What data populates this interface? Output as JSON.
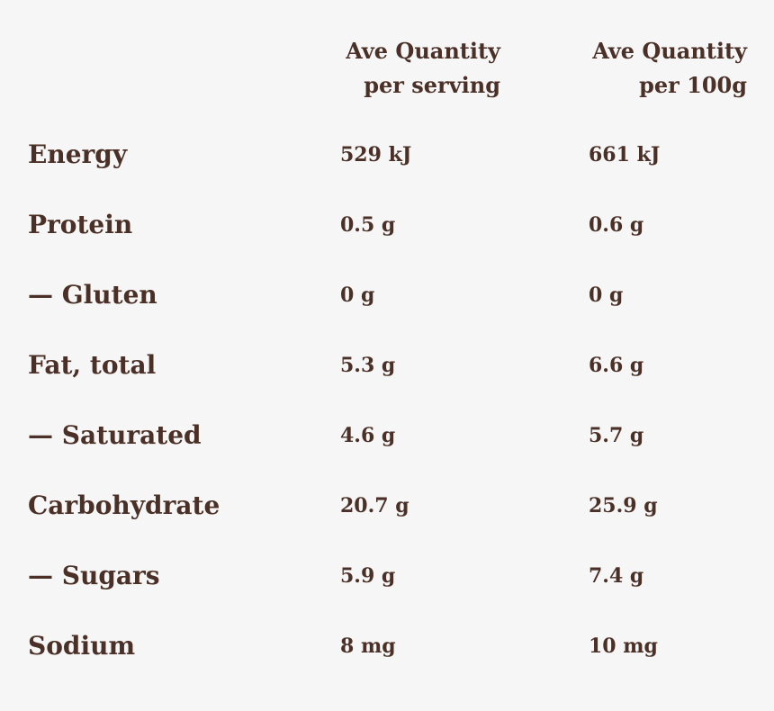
{
  "headers": {
    "serving": {
      "line1": "Ave Quantity",
      "line2": "per serving"
    },
    "per100g": {
      "line1": "Ave Quantity",
      "line2": "per 100g"
    }
  },
  "rows": [
    {
      "label": "Energy",
      "serving": "529 kJ",
      "per100g": "661 kJ"
    },
    {
      "label": "Protein",
      "serving": "0.5 g",
      "per100g": "0.6 g"
    },
    {
      "label": "— Gluten",
      "serving": "0 g",
      "per100g": "0 g"
    },
    {
      "label": "Fat, total",
      "serving": "5.3 g",
      "per100g": "6.6 g"
    },
    {
      "label": "— Saturated",
      "serving": "4.6 g",
      "per100g": "5.7 g"
    },
    {
      "label": "Carbohydrate",
      "serving": "20.7 g",
      "per100g": "25.9 g"
    },
    {
      "label": "— Sugars",
      "serving": "5.9 g",
      "per100g": "7.4 g"
    },
    {
      "label": "Sodium",
      "serving": "8 mg",
      "per100g": "10 mg"
    }
  ],
  "colors": {
    "text": "#4a3026",
    "background": "#f6f6f6"
  }
}
